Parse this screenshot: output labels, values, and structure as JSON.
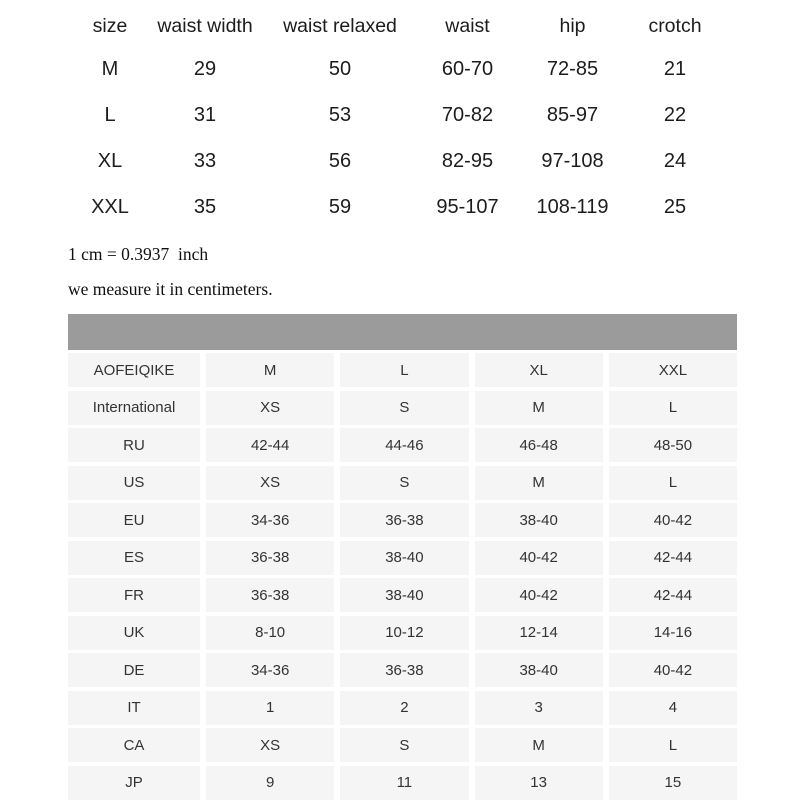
{
  "top_table": {
    "headers": [
      "size",
      "waist width",
      "waist relaxed",
      "waist",
      "hip",
      "crotch"
    ],
    "rows": [
      [
        "M",
        "29",
        "50",
        "60-70",
        "72-85",
        "21"
      ],
      [
        "L",
        "31",
        "53",
        "70-82",
        "85-97",
        "22"
      ],
      [
        "XL",
        "33",
        "56",
        "82-95",
        "97-108",
        "24"
      ],
      [
        "XXL",
        "35",
        "59",
        "95-107",
        "108-119",
        "25"
      ]
    ]
  },
  "notes": {
    "line1": "1 cm = 0.3937  inch",
    "line2": "we measure it in centimeters."
  },
  "size_chart": {
    "rows": [
      {
        "label": "AOFEIQIKE",
        "values": [
          "M",
          "L",
          "XL",
          "XXL"
        ]
      },
      {
        "label": "International",
        "values": [
          "XS",
          "S",
          "M",
          "L"
        ]
      },
      {
        "label": "RU",
        "values": [
          "42-44",
          "44-46",
          "46-48",
          "48-50"
        ]
      },
      {
        "label": "US",
        "values": [
          "XS",
          "S",
          "M",
          "L"
        ]
      },
      {
        "label": "EU",
        "values": [
          "34-36",
          "36-38",
          "38-40",
          "40-42"
        ]
      },
      {
        "label": "ES",
        "values": [
          "36-38",
          "38-40",
          "40-42",
          "42-44"
        ]
      },
      {
        "label": "FR",
        "values": [
          "36-38",
          "38-40",
          "40-42",
          "42-44"
        ]
      },
      {
        "label": "UK",
        "values": [
          "8-10",
          "10-12",
          "12-14",
          "14-16"
        ]
      },
      {
        "label": "DE",
        "values": [
          "34-36",
          "36-38",
          "38-40",
          "40-42"
        ]
      },
      {
        "label": "IT",
        "values": [
          "1",
          "2",
          "3",
          "4"
        ]
      },
      {
        "label": "CA",
        "values": [
          "XS",
          "S",
          "M",
          "L"
        ]
      },
      {
        "label": "JP",
        "values": [
          "9",
          "11",
          "13",
          "15"
        ]
      }
    ]
  },
  "colors": {
    "header_bar": "#9b9b9b",
    "cell_background": "#f5f5f5",
    "text": "#333333"
  }
}
